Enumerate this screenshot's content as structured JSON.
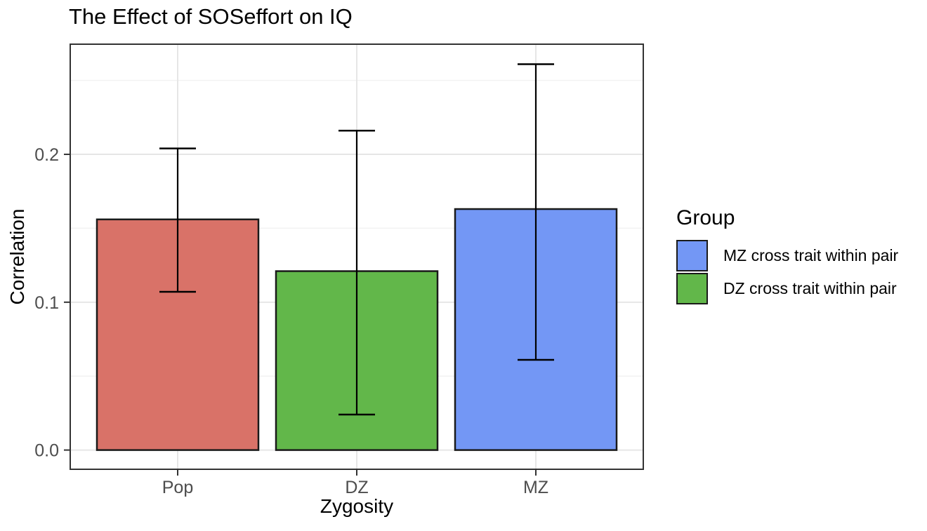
{
  "chart_data": {
    "type": "bar",
    "title": "The Effect of SOSeffort on IQ",
    "xlabel": "Zygosity",
    "ylabel": "Correlation",
    "categories": [
      "Pop",
      "DZ",
      "MZ"
    ],
    "values": [
      0.156,
      0.121,
      0.163
    ],
    "error_low": [
      0.107,
      0.024,
      0.061
    ],
    "error_high": [
      0.204,
      0.216,
      0.261
    ],
    "bar_colors": [
      "#d97268",
      "#62b74a",
      "#7397f5"
    ],
    "bar_border_color": "#1a1a1a",
    "y_ticks": [
      0,
      0.1,
      0.2
    ],
    "y_tick_labels": [
      "0.0",
      "0.1",
      "0.2"
    ],
    "y_minor_ticks": [
      0.05,
      0.15,
      0.25
    ],
    "ylim": [
      -0.013,
      0.2745
    ],
    "grid": true,
    "legend": {
      "title": "Group",
      "position": "right",
      "entries": [
        {
          "label": "MZ cross trait within pair",
          "color": "#7397f5"
        },
        {
          "label": "DZ cross trait within pair",
          "color": "#62b74a"
        }
      ]
    },
    "colors": {
      "background": "#ffffff",
      "panel_border": "#333333",
      "grid_major": "#e6e6e6",
      "grid_minor": "#f2f2f2",
      "tick": "#333333",
      "tick_label": "#4d4d4d",
      "error_bar": "#000000"
    }
  }
}
